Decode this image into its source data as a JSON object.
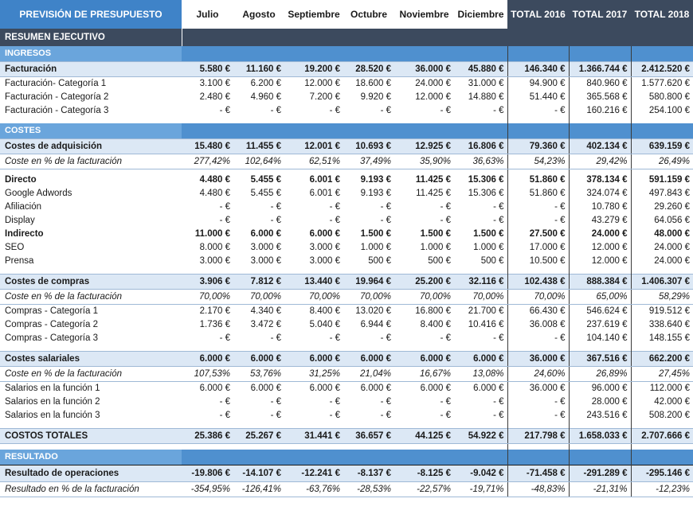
{
  "header": {
    "title": "PREVISIÓN DE PRESUPUESTO",
    "columns": [
      "Julio",
      "Agosto",
      "Septiembre",
      "Octubre",
      "Noviembre",
      "Diciembre",
      "TOTAL 2016",
      "TOTAL 2017",
      "TOTAL 2018"
    ]
  },
  "exec": {
    "label": "RESUMEN EJECUTIVO"
  },
  "ingresos": {
    "section_label": "INGRESOS",
    "facturacion": {
      "label": "Facturación",
      "values": [
        "5.580 €",
        "11.160 €",
        "19.200 €",
        "28.520 €",
        "36.000 €",
        "45.880 €",
        "146.340 €",
        "1.366.744 €",
        "2.412.520 €"
      ]
    },
    "cat1": {
      "label": "Facturación- Categoría 1",
      "values": [
        "3.100 €",
        "6.200 €",
        "12.000 €",
        "18.600 €",
        "24.000 €",
        "31.000 €",
        "94.900 €",
        "840.960 €",
        "1.577.620 €"
      ]
    },
    "cat2": {
      "label": "Facturación - Categoría 2",
      "values": [
        "2.480 €",
        "4.960 €",
        "7.200 €",
        "9.920 €",
        "12.000 €",
        "14.880 €",
        "51.440 €",
        "365.568 €",
        "580.800 €"
      ]
    },
    "cat3": {
      "label": "Facturación - Categoría 3",
      "values": [
        "-   €",
        "-   €",
        "-   €",
        "-   €",
        "-   €",
        "-   €",
        "-   €",
        "160.216 €",
        "254.100 €"
      ]
    }
  },
  "costes": {
    "section_label": "COSTES",
    "adquisicion": {
      "label": "Costes de adquisición",
      "values": [
        "15.480 €",
        "11.455 €",
        "12.001 €",
        "10.693 €",
        "12.925 €",
        "16.806 €",
        "79.360 €",
        "402.134 €",
        "639.159 €"
      ]
    },
    "adquisicion_pct": {
      "label": "Coste en % de la facturación",
      "values": [
        "277,42%",
        "102,64%",
        "62,51%",
        "37,49%",
        "35,90%",
        "36,63%",
        "54,23%",
        "29,42%",
        "26,49%"
      ]
    },
    "directo": {
      "label": "Directo",
      "values": [
        "4.480 €",
        "5.455 €",
        "6.001 €",
        "9.193 €",
        "11.425 €",
        "15.306 €",
        "51.860 €",
        "378.134 €",
        "591.159 €"
      ]
    },
    "adwords": {
      "label": "Google Adwords",
      "values": [
        "4.480 €",
        "5.455 €",
        "6.001 €",
        "9.193 €",
        "11.425 €",
        "15.306 €",
        "51.860 €",
        "324.074 €",
        "497.843 €"
      ]
    },
    "afiliacion": {
      "label": "Afiliación",
      "values": [
        "-   €",
        "-   €",
        "-   €",
        "-   €",
        "-   €",
        "-   €",
        "-   €",
        "10.780 €",
        "29.260 €"
      ]
    },
    "display": {
      "label": "Display",
      "values": [
        "-   €",
        "-   €",
        "-   €",
        "-   €",
        "-   €",
        "-   €",
        "-   €",
        "43.279 €",
        "64.056 €"
      ]
    },
    "indirecto": {
      "label": "Indirecto",
      "values": [
        "11.000 €",
        "6.000 €",
        "6.000 €",
        "1.500 €",
        "1.500 €",
        "1.500 €",
        "27.500 €",
        "24.000 €",
        "48.000 €"
      ]
    },
    "seo": {
      "label": "SEO",
      "values": [
        "8.000 €",
        "3.000 €",
        "3.000 €",
        "1.000 €",
        "1.000 €",
        "1.000 €",
        "17.000 €",
        "12.000 €",
        "24.000 €"
      ]
    },
    "prensa": {
      "label": "Prensa",
      "values": [
        "3.000 €",
        "3.000 €",
        "3.000 €",
        "500 €",
        "500 €",
        "500 €",
        "10.500 €",
        "12.000 €",
        "24.000 €"
      ]
    },
    "compras": {
      "label": "Costes de compras",
      "values": [
        "3.906 €",
        "7.812 €",
        "13.440 €",
        "19.964 €",
        "25.200 €",
        "32.116 €",
        "102.438 €",
        "888.384 €",
        "1.406.307 €"
      ]
    },
    "compras_pct": {
      "label": "Coste en % de la facturación",
      "values": [
        "70,00%",
        "70,00%",
        "70,00%",
        "70,00%",
        "70,00%",
        "70,00%",
        "70,00%",
        "65,00%",
        "58,29%"
      ]
    },
    "compras1": {
      "label": "Compras - Categoría 1",
      "values": [
        "2.170 €",
        "4.340 €",
        "8.400 €",
        "13.020 €",
        "16.800 €",
        "21.700 €",
        "66.430 €",
        "546.624 €",
        "919.512 €"
      ]
    },
    "compras2": {
      "label": "Compras - Categoría 2",
      "values": [
        "1.736 €",
        "3.472 €",
        "5.040 €",
        "6.944 €",
        "8.400 €",
        "10.416 €",
        "36.008 €",
        "237.619 €",
        "338.640 €"
      ]
    },
    "compras3": {
      "label": "Compras - Categoría 3",
      "values": [
        "-   €",
        "-   €",
        "-   €",
        "-   €",
        "-   €",
        "-   €",
        "-   €",
        "104.140 €",
        "148.155 €"
      ]
    },
    "salariales": {
      "label": "Costes salariales",
      "values": [
        "6.000 €",
        "6.000 €",
        "6.000 €",
        "6.000 €",
        "6.000 €",
        "6.000 €",
        "36.000 €",
        "367.516 €",
        "662.200 €"
      ]
    },
    "salariales_pct": {
      "label": "Coste en % de la facturación",
      "values": [
        "107,53%",
        "53,76%",
        "31,25%",
        "21,04%",
        "16,67%",
        "13,08%",
        "24,60%",
        "26,89%",
        "27,45%"
      ]
    },
    "salarios1": {
      "label": "Salarios en la función 1",
      "values": [
        "6.000 €",
        "6.000 €",
        "6.000 €",
        "6.000 €",
        "6.000 €",
        "6.000 €",
        "36.000 €",
        "96.000 €",
        "112.000 €"
      ]
    },
    "salarios2": {
      "label": "Salarios en la función 2",
      "values": [
        "-   €",
        "-   €",
        "-   €",
        "-   €",
        "-   €",
        "-   €",
        "-   €",
        "28.000 €",
        "42.000 €"
      ]
    },
    "salarios3": {
      "label": "Salarios en la función 3",
      "values": [
        "-   €",
        "-   €",
        "-   €",
        "-   €",
        "-   €",
        "-   €",
        "-   €",
        "243.516 €",
        "508.200 €"
      ]
    },
    "totales": {
      "label": "COSTOS TOTALES",
      "values": [
        "25.386 €",
        "25.267 €",
        "31.441 €",
        "36.657 €",
        "44.125 €",
        "54.922 €",
        "217.798 €",
        "1.658.033 €",
        "2.707.666 €"
      ]
    }
  },
  "resultado": {
    "section_label": "RESULTADO",
    "operaciones": {
      "label": "Resultado de operaciones",
      "values": [
        "-19.806 €",
        "-14.107 €",
        "-12.241 €",
        "-8.137 €",
        "-8.125 €",
        "-9.042 €",
        "-71.458 €",
        "-291.289 €",
        "-295.146 €"
      ]
    },
    "pct": {
      "label": "Resultado en % de la facturación",
      "values": [
        "-354,95%",
        "-126,41%",
        "-63,76%",
        "-28,53%",
        "-22,57%",
        "-19,71%",
        "-48,83%",
        "-21,31%",
        "-12,23%"
      ]
    }
  }
}
